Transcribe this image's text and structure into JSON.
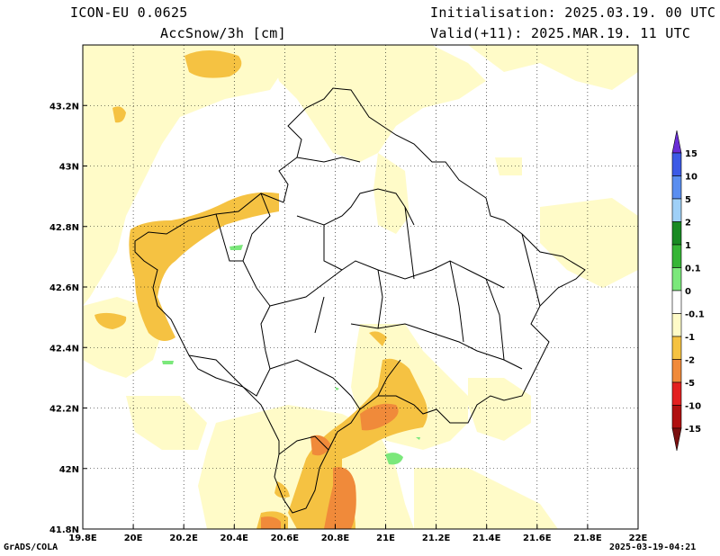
{
  "header": {
    "model": "ICON-EU 0.0625",
    "field": "AccSnow/3h [cm]",
    "initialisation": "Initialisation: 2025.03.19. 00 UTC",
    "valid": "Valid(+11): 2025.MAR.19. 11 UTC"
  },
  "footer": {
    "credit": "GrADS/COLA",
    "timestamp": "2025-03-19-04:21"
  },
  "map": {
    "lon_range": [
      19.8,
      22.0
    ],
    "lat_range": [
      41.8,
      43.4
    ],
    "x_ticks": [
      "19.8E",
      "20E",
      "20.2E",
      "20.4E",
      "20.6E",
      "20.8E",
      "21E",
      "21.2E",
      "21.4E",
      "21.6E",
      "21.8E",
      "22E"
    ],
    "y_ticks": [
      "41.8N",
      "42N",
      "42.2N",
      "42.4N",
      "42.6N",
      "42.8N",
      "43N",
      "43.2N"
    ],
    "grid": "dotted"
  },
  "colorbar": {
    "labels": [
      "15",
      "10",
      "5",
      "2",
      "1",
      "0.1",
      "0",
      "-0.1",
      "-1",
      "-2",
      "-5",
      "-10",
      "-15"
    ],
    "colors": [
      "#6a2dd6",
      "#3c5ae6",
      "#5a8ef0",
      "#9fd0f7",
      "#188a22",
      "#35b535",
      "#7be87b",
      "#ffffff",
      "#fffbc8",
      "#f5c242",
      "#f08a3a",
      "#e32020",
      "#b01010",
      "#7a1010"
    ]
  }
}
